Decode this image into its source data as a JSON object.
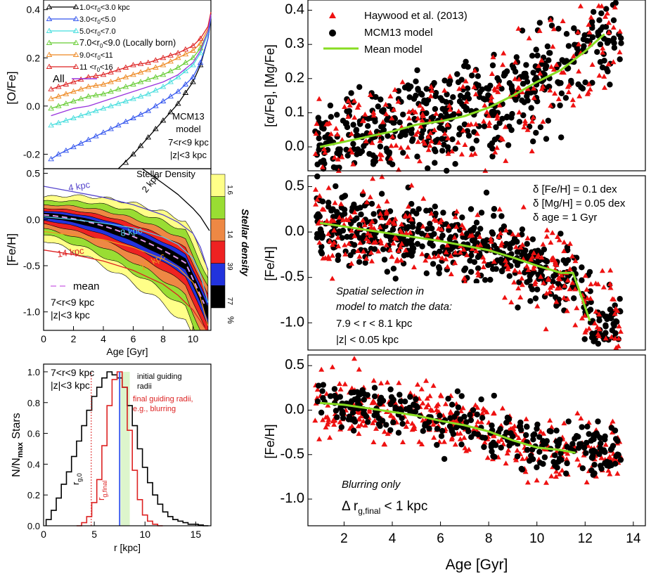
{
  "chart_data": [
    {
      "type": "line",
      "panel": "top-left",
      "ylabel": "[O/Fe]",
      "xlim": [
        0,
        11.2
      ],
      "ylim": [
        -0.26,
        0.44
      ],
      "yticks": [
        "-0.2",
        "0.0",
        "0.2",
        "0.4"
      ],
      "series": [
        {
          "name": "1.0<r0<3.0 kpc",
          "label_main": "1.0<r",
          "label_rest": "<3.0  kpc",
          "color": "#000000",
          "x": [
            5.0,
            6.0,
            7.0,
            8.0,
            9.0,
            10.0,
            10.5,
            11.0,
            11.2
          ],
          "y": [
            -0.27,
            -0.2,
            -0.13,
            -0.06,
            0.01,
            0.1,
            0.17,
            0.28,
            0.36
          ]
        },
        {
          "name": "3.0<r0<5.0",
          "label_main": "3.0<r",
          "label_rest": "<5.0",
          "color": "#3355ee",
          "x": [
            0.5,
            1.0,
            2.0,
            3.0,
            4.0,
            5.0,
            6.0,
            7.0,
            8.0,
            9.0,
            10.0,
            10.5,
            11.0,
            11.2
          ],
          "y": [
            -0.22,
            -0.2,
            -0.17,
            -0.14,
            -0.11,
            -0.08,
            -0.05,
            -0.02,
            0.02,
            0.06,
            0.12,
            0.18,
            0.28,
            0.37
          ]
        },
        {
          "name": "5.0<r0<7.0",
          "label_main": "5.0<r",
          "label_rest": "<7.0",
          "color": "#44dddd",
          "x": [
            0.5,
            1.0,
            2.0,
            3.0,
            4.0,
            5.0,
            6.0,
            7.0,
            8.0,
            9.0,
            10.0,
            10.5,
            11.0,
            11.2
          ],
          "y": [
            -0.08,
            -0.07,
            -0.05,
            -0.03,
            -0.01,
            0.01,
            0.03,
            0.05,
            0.08,
            0.12,
            0.17,
            0.22,
            0.3,
            0.38
          ]
        },
        {
          "name": "7.0<r0<9.0 (Locally born)",
          "label_main": "7.0<r",
          "label_rest": "<9.0 (Locally born)",
          "color": "#66cc33",
          "x": [
            0.5,
            1.0,
            2.0,
            3.0,
            4.0,
            5.0,
            6.0,
            7.0,
            8.0,
            9.0,
            10.0,
            10.5,
            11.0,
            11.2
          ],
          "y": [
            -0.01,
            0.0,
            0.02,
            0.04,
            0.05,
            0.07,
            0.09,
            0.11,
            0.13,
            0.16,
            0.2,
            0.24,
            0.31,
            0.38
          ]
        },
        {
          "name": "9.0<r0<11",
          "label_main": "9.0<r",
          "label_rest": "<11",
          "color": "#ee8822",
          "x": [
            0.5,
            1.0,
            2.0,
            3.0,
            4.0,
            5.0,
            6.0,
            7.0,
            8.0,
            9.0,
            10.0,
            10.5,
            11.0,
            11.2
          ],
          "y": [
            0.03,
            0.04,
            0.06,
            0.08,
            0.09,
            0.11,
            0.13,
            0.15,
            0.17,
            0.2,
            0.23,
            0.26,
            0.32,
            0.38
          ]
        },
        {
          "name": "11<r0<16",
          "label_main": "11 <r",
          "label_rest": "<16",
          "color": "#dd2222",
          "x": [
            0.5,
            1.0,
            2.0,
            3.0,
            4.0,
            5.0,
            6.0,
            7.0,
            8.0,
            9.0,
            10.0,
            10.5,
            11.0,
            11.2
          ],
          "y": [
            0.07,
            0.08,
            0.1,
            0.12,
            0.13,
            0.15,
            0.17,
            0.18,
            0.2,
            0.22,
            0.25,
            0.28,
            0.33,
            0.39
          ]
        },
        {
          "name": "All",
          "label_main": "All",
          "label_rest": "",
          "color": "#9933dd",
          "x": [
            0.5,
            1.0,
            2.0,
            3.0,
            4.0,
            5.0,
            6.0,
            7.0,
            8.0,
            9.0,
            10.0,
            10.5,
            11.0,
            11.2
          ],
          "y": [
            -0.04,
            -0.03,
            -0.01,
            0.0,
            0.02,
            0.04,
            0.06,
            0.08,
            0.1,
            0.13,
            0.18,
            0.23,
            0.31,
            0.38
          ]
        }
      ],
      "annotation": [
        "MCM13",
        "model",
        "7<r<9 kpc",
        "|z|<3 kpc"
      ]
    },
    {
      "type": "area",
      "panel": "middle-left",
      "xlabel": "Age [Gyr]",
      "ylabel": "[Fe/H]",
      "xlim": [
        0,
        11.2
      ],
      "ylim": [
        -1.2,
        0.55
      ],
      "xticks": [
        "0",
        "2",
        "4",
        "6",
        "8",
        "10"
      ],
      "yticks": [
        "-1.0",
        "-0.5",
        "0.0",
        "0.5"
      ],
      "title_top": "Stellar   Density",
      "mean_label": "mean",
      "region_label": [
        "7<r<9 kpc",
        "|z|<3 kpc"
      ],
      "guide_curves": [
        {
          "label": "2 kpc",
          "color": "#000000",
          "x": [
            6.6,
            8,
            9,
            10,
            10.5,
            11.1
          ],
          "y": [
            0.55,
            0.39,
            0.27,
            0.12,
            0.03,
            -0.12
          ]
        },
        {
          "label": "4 kpc",
          "color": "#5544cc",
          "x": [
            0,
            2,
            4,
            6,
            8,
            9,
            10,
            10.5,
            11.0
          ],
          "y": [
            0.36,
            0.3,
            0.24,
            0.16,
            0.05,
            -0.03,
            -0.15,
            -0.3,
            -0.55
          ]
        },
        {
          "label": "8 kpc",
          "color": "#55ccee",
          "x": [
            0,
            2,
            4,
            6,
            8,
            9,
            10,
            10.5,
            11.0
          ],
          "y": [
            0.03,
            0.0,
            -0.04,
            -0.09,
            -0.19,
            -0.27,
            -0.42,
            -0.6,
            -0.9
          ]
        },
        {
          "label": "12 kpc",
          "color": "#ee9922",
          "x": [
            0,
            2,
            4,
            6,
            8,
            9,
            10,
            10.5,
            11.0
          ],
          "y": [
            -0.13,
            -0.17,
            -0.22,
            -0.3,
            -0.43,
            -0.52,
            -0.68,
            -0.85,
            -1.15
          ]
        },
        {
          "label": "14 kpc",
          "color": "#dd2222",
          "x": [
            0,
            2,
            4,
            6,
            8,
            9,
            10,
            10.5,
            10.9
          ],
          "y": [
            -0.33,
            -0.38,
            -0.45,
            -0.55,
            -0.7,
            -0.82,
            -0.98,
            -1.1,
            -1.2
          ]
        }
      ],
      "colorbar": {
        "label": "Stellar density",
        "ticks": [
          "1.6",
          "14",
          "39",
          "77"
        ],
        "unit": "%",
        "colors": [
          "#ffff88",
          "#99dd33",
          "#ee8844",
          "#ee2222",
          "#2233dd",
          "#000000"
        ]
      }
    },
    {
      "type": "line",
      "panel": "bottom-left",
      "xlabel": "r [kpc]",
      "ylabel_main": "N/N",
      "ylabel_sub": "max",
      "ylabel_end": " Stars",
      "xlim": [
        0,
        16.5
      ],
      "ylim": [
        0,
        1.05
      ],
      "xticks": [
        "0",
        "5",
        "10",
        "15"
      ],
      "yticks": [
        "0.0",
        "0.2",
        "0.4",
        "0.6",
        "0.8",
        "1.0"
      ],
      "series": [
        {
          "name": "initial guiding radii",
          "color": "#000000",
          "x": [
            0.5,
            1.0,
            1.5,
            2.0,
            2.5,
            3.0,
            3.5,
            4.0,
            4.5,
            5.0,
            5.5,
            6.0,
            6.5,
            7.0,
            7.5,
            8.0,
            8.5,
            9.0,
            9.5,
            10.0,
            10.5,
            11.0,
            11.5,
            12.0,
            12.5,
            13.0,
            13.5,
            14.0,
            14.5,
            15.0,
            15.5,
            16.0
          ],
          "y": [
            0.04,
            0.1,
            0.18,
            0.27,
            0.35,
            0.45,
            0.55,
            0.65,
            0.75,
            0.84,
            0.9,
            0.96,
            1.0,
            0.98,
            0.96,
            0.9,
            0.78,
            0.65,
            0.5,
            0.38,
            0.28,
            0.2,
            0.14,
            0.09,
            0.06,
            0.04,
            0.03,
            0.02,
            0.01,
            0.01,
            0.005,
            0.0
          ]
        },
        {
          "name": "final guiding radii, e.g., blurring",
          "color": "#dd2222",
          "x": [
            3.5,
            4.0,
            4.5,
            5.0,
            5.5,
            6.0,
            6.5,
            7.0,
            7.5,
            8.0,
            8.5,
            9.0,
            9.5,
            10.0,
            10.5,
            11.0,
            11.5
          ],
          "y": [
            0.0,
            0.02,
            0.06,
            0.15,
            0.3,
            0.52,
            0.78,
            0.95,
            1.0,
            0.9,
            0.62,
            0.36,
            0.17,
            0.07,
            0.03,
            0.01,
            0.0
          ]
        }
      ],
      "vlines": [
        {
          "x": 4.7,
          "color": "#dd2222",
          "style": "dotted",
          "label_main": "r",
          "label_sub": "g,0"
        },
        {
          "x": 7.5,
          "color": "#3355ee",
          "style": "solid"
        }
      ],
      "shaded_band": [
        7.6,
        8.5
      ],
      "label_final_main": "r",
      "label_final_sub": "g,final",
      "region_label": [
        "7<r<9 kpc",
        "|z|<3 kpc"
      ],
      "legend_black": [
        "initial guiding",
        "radii"
      ],
      "legend_red": [
        "final guiding radii,",
        "e.g., blurring"
      ]
    },
    {
      "type": "scatter",
      "panel": "top-right",
      "ylabel": "[α/Fe], [Mg/Fe]",
      "xlim": [
        0.5,
        14.5
      ],
      "ylim": [
        -0.07,
        0.43
      ],
      "yticks": [
        "0.0",
        "0.1",
        "0.2",
        "0.3",
        "0.4"
      ],
      "legend": [
        "Haywood et al. (2013)",
        "MCM13 model",
        "Mean model"
      ],
      "mean_model": {
        "x": [
          1,
          2,
          3,
          4,
          5,
          6,
          7,
          8,
          9,
          10,
          11,
          12,
          12.8
        ],
        "y": [
          0.0,
          0.015,
          0.03,
          0.045,
          0.065,
          0.075,
          0.09,
          0.115,
          0.15,
          0.19,
          0.225,
          0.28,
          0.33
        ]
      },
      "cloud": {
        "x_range": [
          0.8,
          13.5
        ],
        "scatter": 0.07,
        "n_black": 520,
        "n_red": 240
      }
    },
    {
      "type": "scatter",
      "panel": "middle-right",
      "ylabel": "[Fe/H]",
      "xlim": [
        0.5,
        14.5
      ],
      "ylim": [
        -1.3,
        0.62
      ],
      "yticks": [
        "-1.0",
        "-0.5",
        "0.0",
        "0.5"
      ],
      "errors": [
        "δ [Fe/H] = 0.1 dex",
        "δ [Mg/H] = 0.05 dex",
        "δ age = 1 Gyr"
      ],
      "selection_note": [
        "Spatial selection in",
        "model to match the data:"
      ],
      "selection_values": [
        "7.9 < r < 8.1 kpc",
        "|z| < 0.05 kpc"
      ],
      "mean_model": {
        "x": [
          1,
          2,
          3,
          4,
          5,
          6,
          7,
          8,
          9,
          10,
          11,
          11.5,
          11.9,
          12.2
        ],
        "y": [
          0.1,
          0.06,
          0.02,
          -0.02,
          -0.06,
          -0.1,
          -0.15,
          -0.2,
          -0.28,
          -0.37,
          -0.45,
          -0.45,
          -0.75,
          -0.98
        ]
      },
      "cloud": {
        "x_range": [
          0.8,
          13.5
        ],
        "scatter": 0.18,
        "n_black": 520,
        "n_red": 300
      }
    },
    {
      "type": "scatter",
      "panel": "bottom-right",
      "xlabel": "Age [Gyr]",
      "ylabel": "[Fe/H]",
      "xlim": [
        0.5,
        14.5
      ],
      "ylim": [
        -1.3,
        0.62
      ],
      "xticks": [
        "2",
        "4",
        "6",
        "8",
        "10",
        "12",
        "14"
      ],
      "yticks": [
        "-1.0",
        "-0.5",
        "0.0",
        "0.5"
      ],
      "note": "Blurring only",
      "note2_main": "Δ r",
      "note2_sub": "g,final",
      "note2_end": " < 1 kpc",
      "mean_model": {
        "x": [
          1,
          2,
          3,
          4,
          5,
          6,
          7,
          8,
          9,
          10,
          11,
          11.6
        ],
        "y": [
          0.08,
          0.06,
          0.02,
          -0.02,
          -0.06,
          -0.12,
          -0.17,
          -0.24,
          -0.34,
          -0.42,
          -0.45,
          -0.48
        ]
      },
      "cloud": {
        "x_range": [
          0.8,
          13.5
        ],
        "scatter": 0.14,
        "n_black": 300,
        "n_red": 380
      }
    }
  ]
}
